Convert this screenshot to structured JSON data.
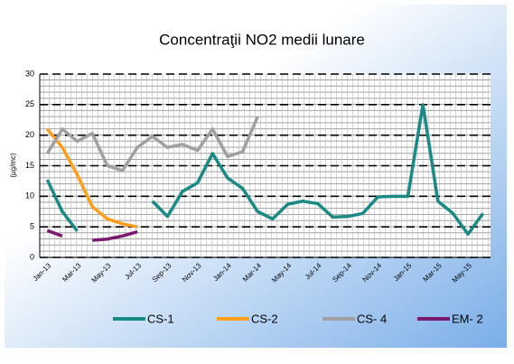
{
  "chart_data": {
    "type": "line",
    "title": "Concentraţii NO2 medii lunare",
    "y_label": "(µg/mc)",
    "categories": [
      "Jan-13",
      null,
      "Mar-13",
      null,
      "May-13",
      null,
      "Jul-13",
      null,
      "Sep-13",
      null,
      "Nov-13",
      null,
      "Jan-14",
      null,
      "Mar-14",
      null,
      "May-14",
      null,
      "Jul-14",
      null,
      "Sep-14",
      null,
      "Nov-14",
      null,
      "Jan-15",
      null,
      "Mar-15",
      null,
      "May-15",
      null
    ],
    "series": [
      {
        "name": "CS-1",
        "color": "#1a8a86",
        "values": [
          12.7,
          7.5,
          4.3,
          null,
          null,
          null,
          null,
          9.2,
          6.7,
          10.8,
          12.2,
          17,
          13,
          11.3,
          7.5,
          6.3,
          8.7,
          9.2,
          8.8,
          6.6,
          6.7,
          7.2,
          9.9,
          10,
          10,
          25,
          9.2,
          7.2,
          3.8,
          7.2
        ]
      },
      {
        "name": "CS-2",
        "color": "#ff9e1a",
        "values": [
          21,
          18,
          13.5,
          8.3,
          6.3,
          5.5,
          5.0,
          null,
          null,
          null,
          null,
          null,
          null,
          null,
          null,
          null,
          null,
          null,
          null,
          null,
          null,
          null,
          null,
          null,
          null,
          null,
          null,
          null,
          null,
          null
        ]
      },
      {
        "name": "CS- 4",
        "color": "#a0a0a0",
        "values": [
          17,
          21,
          19,
          20.3,
          15,
          14.2,
          18,
          19.8,
          18,
          18.5,
          17.5,
          21,
          16.5,
          17.3,
          23,
          null,
          null,
          null,
          null,
          null,
          null,
          null,
          null,
          null,
          null,
          null,
          null,
          null,
          null,
          null
        ]
      },
      {
        "name": "EM- 2",
        "color": "#7a1a6e",
        "values": [
          4.4,
          3.5,
          null,
          2.8,
          3,
          3.5,
          4.2,
          null,
          null,
          null,
          null,
          null,
          null,
          null,
          null,
          null,
          null,
          null,
          null,
          null,
          null,
          null,
          null,
          null,
          null,
          null,
          null,
          null,
          null,
          null
        ]
      }
    ],
    "ylim": [
      0,
      30
    ],
    "yticks": [
      0,
      5,
      10,
      15,
      20,
      25,
      30
    ],
    "grid": true
  }
}
